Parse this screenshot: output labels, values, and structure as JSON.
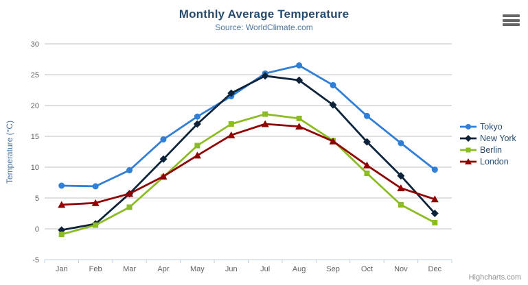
{
  "chart": {
    "title": "Monthly Average Temperature",
    "subtitle": "Source: WorldClimate.com",
    "credits": "Highcharts.com",
    "export_menu_icon": "hamburger-icon"
  },
  "colors": {
    "title": "#274b6d",
    "subtitle": "#4d759e",
    "axis_title": "#4572a7",
    "axis_labels": "#606060",
    "gridline": "#c0c0c0",
    "axis_line": "#c0d0e0",
    "legend_text": "#274b6d",
    "credits": "#909090",
    "background": "#ffffff"
  },
  "chart_data": {
    "type": "line",
    "title": "Monthly Average Temperature",
    "subtitle": "Source: WorldClimate.com",
    "categories": [
      "Jan",
      "Feb",
      "Mar",
      "Apr",
      "May",
      "Jun",
      "Jul",
      "Aug",
      "Sep",
      "Oct",
      "Nov",
      "Dec"
    ],
    "series": [
      {
        "name": "Tokyo",
        "color": "#2f7ed8",
        "marker": "circle",
        "values": [
          7.0,
          6.9,
          9.5,
          14.5,
          18.2,
          21.5,
          25.2,
          26.5,
          23.3,
          18.3,
          13.9,
          9.6
        ]
      },
      {
        "name": "New York",
        "color": "#0d233a",
        "marker": "diamond",
        "values": [
          -0.2,
          0.8,
          5.7,
          11.3,
          17.0,
          22.0,
          24.8,
          24.1,
          20.1,
          14.1,
          8.6,
          2.5
        ]
      },
      {
        "name": "Berlin",
        "color": "#8bbc21",
        "marker": "square",
        "values": [
          -0.9,
          0.6,
          3.5,
          8.4,
          13.5,
          17.0,
          18.6,
          17.9,
          14.3,
          9.0,
          3.9,
          1.0
        ]
      },
      {
        "name": "London",
        "color": "#910000",
        "marker": "triangle",
        "values": [
          3.9,
          4.2,
          5.7,
          8.5,
          11.9,
          15.2,
          17.0,
          16.6,
          14.2,
          10.3,
          6.6,
          4.8
        ]
      }
    ],
    "xlabel": "",
    "ylabel": "Temperature (°C)",
    "ylim": [
      -5,
      30
    ],
    "ytick_step": 5,
    "grid": true,
    "legend_position": "right"
  }
}
